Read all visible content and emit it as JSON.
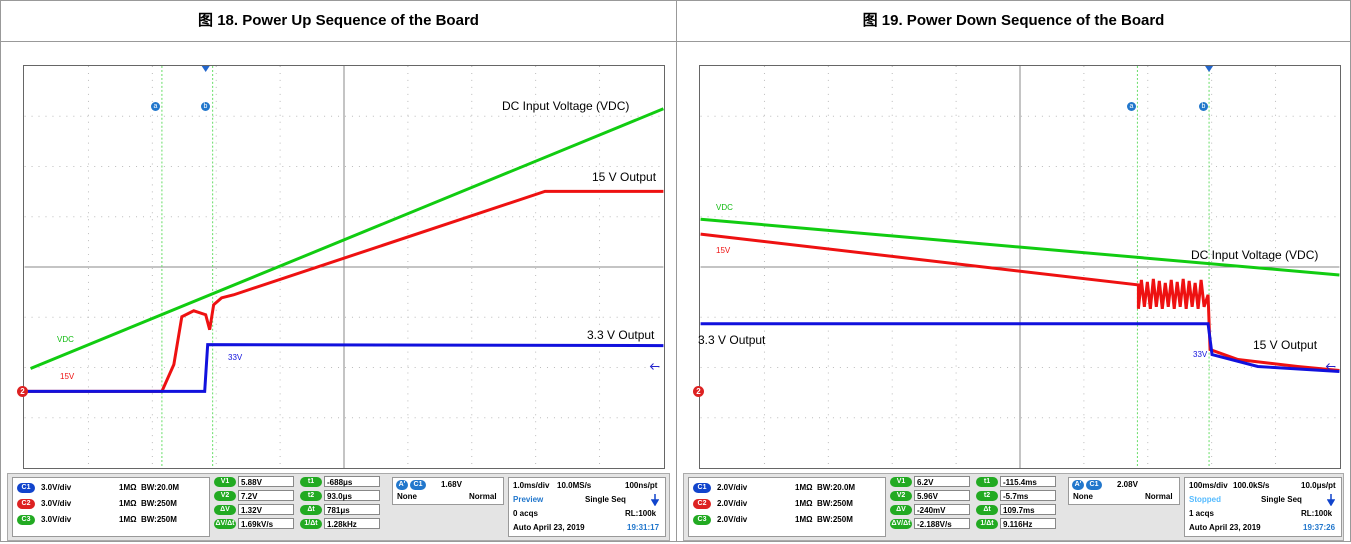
{
  "panels": [
    {
      "title": "图 18. Power Up Sequence of the Board",
      "trace_labels": [
        "DC Input Voltage (VDC)",
        "15 V Output",
        "3.3 V Output",
        "VDC",
        "15V",
        "33V",
        "a",
        "b",
        "2"
      ],
      "channels": [
        {
          "badge": "C1",
          "scale": "3.0V/div",
          "impedance": "1MΩ",
          "bandwidth": "BW:20.0M"
        },
        {
          "badge": "C2",
          "scale": "3.0V/div",
          "impedance": "1MΩ",
          "bandwidth": "BW:250M"
        },
        {
          "badge": "C3",
          "scale": "3.0V/div",
          "impedance": "1MΩ",
          "bandwidth": "BW:250M"
        }
      ],
      "cursors": [
        {
          "label": "V1",
          "value": "5.88V"
        },
        {
          "label": "V2",
          "value": "7.2V"
        },
        {
          "label": "ΔV",
          "value": "1.32V"
        },
        {
          "label": "ΔV/Δt",
          "value": "1.69kV/s"
        },
        {
          "label": "t1",
          "value": "-688μs"
        },
        {
          "label": "t2",
          "value": "93.0μs"
        },
        {
          "label": "Δt",
          "value": "781μs"
        },
        {
          "label": "1/Δt",
          "value": "1.28kHz"
        }
      ],
      "trigger": {
        "source_tag": "A'",
        "channel": "C1",
        "level": "1.68V",
        "coupling": "None",
        "mode": "Normal"
      },
      "timebase": [
        [
          "1.0ms/div",
          "10.0MS/s",
          "100ns/pt"
        ],
        [
          "Preview",
          "Single Seq"
        ],
        [
          "0 acqs",
          "RL:100k"
        ],
        [
          "Auto",
          "April 23, 2019",
          "19:31:17"
        ]
      ]
    },
    {
      "title": "图 19. Power Down Sequence of the Board",
      "trace_labels": [
        "DC Input Voltage (VDC)",
        "15 V Output",
        "3.3 V Output",
        "VDC",
        "15V",
        "33V",
        "a",
        "b",
        "2"
      ],
      "channels": [
        {
          "badge": "C1",
          "scale": "2.0V/div",
          "impedance": "1MΩ",
          "bandwidth": "BW:20.0M"
        },
        {
          "badge": "C2",
          "scale": "2.0V/div",
          "impedance": "1MΩ",
          "bandwidth": "BW:250M"
        },
        {
          "badge": "C3",
          "scale": "2.0V/div",
          "impedance": "1MΩ",
          "bandwidth": "BW:250M"
        }
      ],
      "cursors": [
        {
          "label": "V1",
          "value": "6.2V"
        },
        {
          "label": "V2",
          "value": "5.96V"
        },
        {
          "label": "ΔV",
          "value": "-240mV"
        },
        {
          "label": "ΔV/Δt",
          "value": "-2.188V/s"
        },
        {
          "label": "t1",
          "value": "-115.4ms"
        },
        {
          "label": "t2",
          "value": "-5.7ms"
        },
        {
          "label": "Δt",
          "value": "109.7ms"
        },
        {
          "label": "1/Δt",
          "value": "9.116Hz"
        }
      ],
      "trigger": {
        "source_tag": "A'",
        "channel": "C1",
        "level": "2.08V",
        "coupling": "None",
        "mode": "Normal"
      },
      "timebase": [
        [
          "100ms/div",
          "100.0kS/s",
          "10.0μs/pt"
        ],
        [
          "Stopped",
          "Single Seq"
        ],
        [
          "1 acqs",
          "RL:100k"
        ],
        [
          "Auto",
          "April 23, 2019",
          "19:37:26"
        ]
      ]
    }
  ]
}
